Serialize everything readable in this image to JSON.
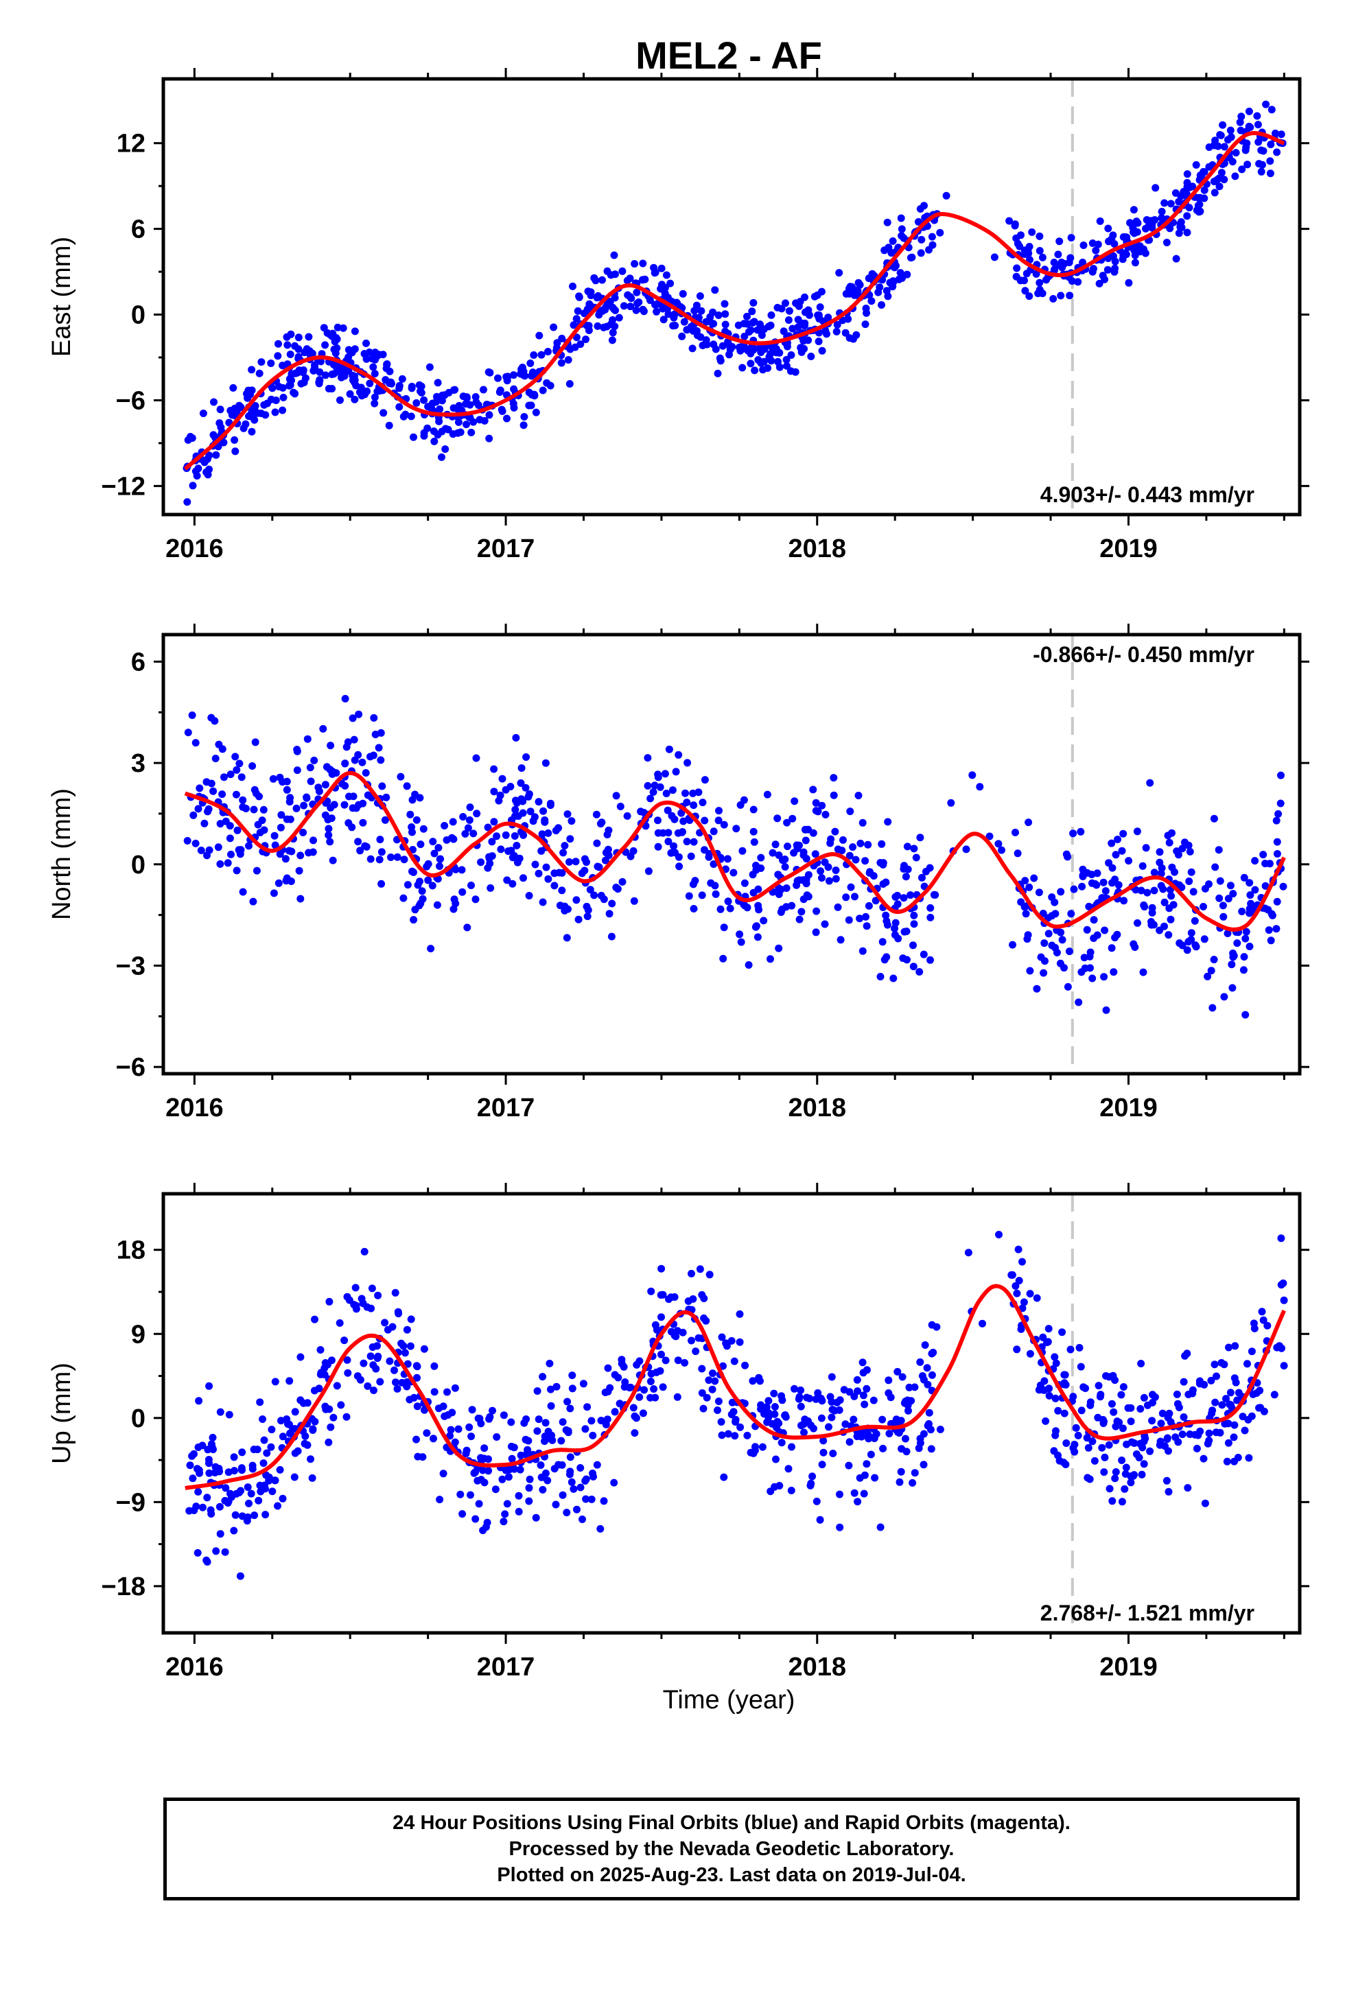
{
  "title": "MEL2 - AF",
  "xlabel": "Time (year)",
  "colors": {
    "points": "#0000ff",
    "fit": "#ff0000",
    "event_line": "#c8c8c8",
    "frame": "#000000"
  },
  "chart_data": [
    {
      "type": "scatter",
      "component": "east",
      "ylabel": "East (mm)",
      "xlim": [
        2015.9,
        2019.55
      ],
      "ylim": [
        -14,
        16.5
      ],
      "yticks": [
        -12,
        -6,
        0,
        6,
        12
      ],
      "ytick_labels": [
        "−12",
        "−6",
        "0",
        "6",
        "12"
      ],
      "xticks": [
        2016,
        2017,
        2018,
        2019
      ],
      "xtick_labels": [
        "2016",
        "2017",
        "2018",
        "2019"
      ],
      "event_line_x": 2018.82,
      "rate_label": "4.903+/- 0.443 mm/yr",
      "rate_label_position": "bottom-right",
      "fit_curve": {
        "x": [
          2015.97,
          2016.1,
          2016.25,
          2016.4,
          2016.55,
          2016.7,
          2016.82,
          2016.95,
          2017.1,
          2017.25,
          2017.38,
          2017.5,
          2017.65,
          2017.8,
          2017.95,
          2018.1,
          2018.25,
          2018.35,
          2018.42,
          2018.55,
          2018.68,
          2018.8,
          2018.95,
          2019.1,
          2019.25,
          2019.38,
          2019.5
        ],
        "y": [
          -10.8,
          -8.3,
          -4.6,
          -3.0,
          -4.2,
          -6.5,
          -7.0,
          -6.5,
          -4.5,
          -0.5,
          2.0,
          1.0,
          -1.0,
          -2.0,
          -1.4,
          0.3,
          4.0,
          6.5,
          7.0,
          5.8,
          3.5,
          2.8,
          4.5,
          6.0,
          9.5,
          12.6,
          12.0
        ]
      },
      "points": {
        "count": 1100,
        "trend": 4.9,
        "noise": 1.2,
        "seed": 11
      }
    },
    {
      "type": "scatter",
      "component": "north",
      "ylabel": "North (mm)",
      "xlim": [
        2015.9,
        2019.55
      ],
      "ylim": [
        -6.2,
        6.8
      ],
      "yticks": [
        -6,
        -3,
        0,
        3,
        6
      ],
      "ytick_labels": [
        "−6",
        "−3",
        "0",
        "3",
        "6"
      ],
      "xticks": [
        2016,
        2017,
        2018,
        2019
      ],
      "xtick_labels": [
        "2016",
        "2017",
        "2018",
        "2019"
      ],
      "event_line_x": 2018.82,
      "rate_label": "-0.866+/- 0.450 mm/yr",
      "rate_label_position": "top-right",
      "fit_curve": {
        "x": [
          2015.97,
          2016.1,
          2016.25,
          2016.4,
          2016.5,
          2016.6,
          2016.75,
          2016.9,
          2017.0,
          2017.1,
          2017.25,
          2017.38,
          2017.5,
          2017.62,
          2017.75,
          2017.9,
          2018.05,
          2018.15,
          2018.25,
          2018.35,
          2018.5,
          2018.62,
          2018.72,
          2018.8,
          2018.95,
          2019.1,
          2019.25,
          2019.38,
          2019.5
        ],
        "y": [
          2.1,
          1.6,
          0.4,
          1.8,
          2.7,
          1.8,
          -0.3,
          0.6,
          1.2,
          0.8,
          -0.5,
          0.5,
          1.8,
          1.2,
          -1.0,
          -0.4,
          0.3,
          -0.4,
          -1.4,
          -0.8,
          0.9,
          -0.3,
          -1.6,
          -1.8,
          -1.0,
          -0.4,
          -1.6,
          -1.8,
          0.2
        ]
      },
      "points": {
        "count": 1000,
        "trend": -0.87,
        "noise": 1.1,
        "seed": 23
      }
    },
    {
      "type": "scatter",
      "component": "up",
      "ylabel": "Up (mm)",
      "xlim": [
        2015.9,
        2019.55
      ],
      "ylim": [
        -23,
        24
      ],
      "yticks": [
        -18,
        -9,
        0,
        9,
        18
      ],
      "ytick_labels": [
        "−18",
        "−9",
        "0",
        "9",
        "18"
      ],
      "xticks": [
        2016,
        2017,
        2018,
        2019
      ],
      "xtick_labels": [
        "2016",
        "2017",
        "2018",
        "2019"
      ],
      "event_line_x": 2018.82,
      "rate_label": "2.768+/- 1.521 mm/yr",
      "rate_label_position": "bottom-right",
      "fit_curve": {
        "x": [
          2015.97,
          2016.1,
          2016.25,
          2016.4,
          2016.5,
          2016.6,
          2016.72,
          2016.85,
          2017.0,
          2017.15,
          2017.28,
          2017.4,
          2017.5,
          2017.6,
          2017.72,
          2017.85,
          2018.0,
          2018.15,
          2018.3,
          2018.42,
          2018.52,
          2018.6,
          2018.7,
          2018.8,
          2018.9,
          2019.05,
          2019.2,
          2019.35,
          2019.5
        ],
        "y": [
          -7.5,
          -6.8,
          -5.0,
          2.0,
          7.5,
          8.5,
          3.0,
          -4.0,
          -5.0,
          -3.5,
          -3.0,
          2.0,
          9.0,
          11.0,
          3.0,
          -1.5,
          -2.0,
          -1.0,
          -0.5,
          5.0,
          12.5,
          13.8,
          8.0,
          2.0,
          -2.0,
          -1.5,
          -0.5,
          1.0,
          11.5
        ]
      },
      "points": {
        "count": 1000,
        "trend": 2.77,
        "noise": 3.8,
        "seed": 37
      }
    }
  ],
  "footer": {
    "line1": "24 Hour Positions Using Final Orbits (blue) and Rapid Orbits (magenta).",
    "line2": "Processed by the Nevada Geodetic Laboratory.",
    "line3": "Plotted on 2025-Aug-23. Last data on 2019-Jul-04."
  }
}
